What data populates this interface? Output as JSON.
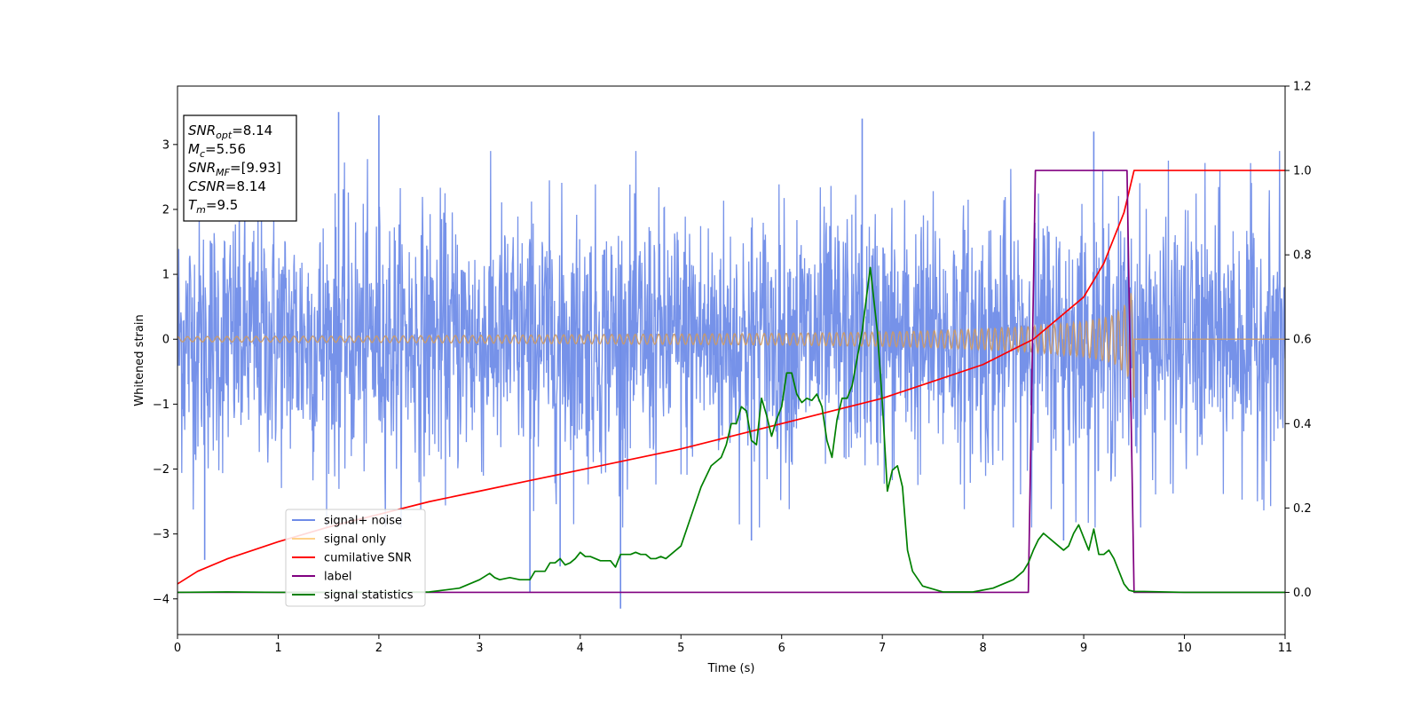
{
  "chart_data": {
    "type": "line",
    "xlabel": "Time (s)",
    "ylabel": "Whitened strain",
    "xlim": [
      0,
      11
    ],
    "ylim_left": [
      -4.55,
      3.9
    ],
    "ylim_right": [
      -0.1,
      1.2
    ],
    "x_ticks": [
      "0",
      "1",
      "2",
      "3",
      "4",
      "5",
      "6",
      "7",
      "8",
      "9",
      "10",
      "11"
    ],
    "y_ticks_left": [
      "−4",
      "−3",
      "−2",
      "−1",
      "0",
      "1",
      "2",
      "3"
    ],
    "y_ticks_right": [
      "0.0",
      "0.2",
      "0.4",
      "0.6",
      "0.8",
      "1.0",
      "1.2"
    ],
    "info_box": [
      {
        "main": "SNR",
        "sub": "opt",
        "value": "=8.14"
      },
      {
        "main": "M",
        "sub": "c",
        "value": "=5.56"
      },
      {
        "main": "SNR",
        "sub": "MF",
        "value": "=[9.93]"
      },
      {
        "main": "CSNR",
        "sub": "",
        "value": "=8.14"
      },
      {
        "main": "T",
        "sub": "m",
        "value": "=9.5"
      }
    ],
    "legend": [
      {
        "label": "signal+ noise",
        "color": "#6f8ce8"
      },
      {
        "label": "signal only",
        "color": "#ffd28a"
      },
      {
        "label": "cumilative SNR",
        "color": "#ff0000"
      },
      {
        "label": "label",
        "color": "#800080"
      },
      {
        "label": "signal statistics",
        "color": "#008000"
      }
    ],
    "series": [
      {
        "name": "signal+ noise",
        "axis": "left",
        "color": "#6f8ce8",
        "description_range": [
          -4.2,
          3.5
        ],
        "outliers": [
          [
            1.6,
            3.5
          ],
          [
            0.27,
            -3.4
          ],
          [
            4.4,
            -4.15
          ],
          [
            3.5,
            -3.9
          ],
          [
            6.8,
            3.4
          ],
          [
            2.0,
            3.45
          ],
          [
            9.1,
            3.2
          ],
          [
            3.8,
            -3.5
          ],
          [
            5.7,
            -3.1
          ],
          [
            8.8,
            -3.1
          ]
        ]
      },
      {
        "name": "signal only",
        "axis": "left",
        "color": "#ffd28a",
        "chirp_end": 9.5,
        "envelope": [
          [
            0,
            0.04
          ],
          [
            2,
            0.05
          ],
          [
            4,
            0.07
          ],
          [
            5,
            0.08
          ],
          [
            6,
            0.09
          ],
          [
            7,
            0.11
          ],
          [
            7.5,
            0.13
          ],
          [
            8,
            0.16
          ],
          [
            8.5,
            0.2
          ],
          [
            9,
            0.27
          ],
          [
            9.3,
            0.37
          ],
          [
            9.45,
            0.6
          ],
          [
            9.5,
            0.9
          ]
        ]
      },
      {
        "name": "cumilative SNR",
        "axis": "right",
        "color": "#ff0000",
        "x": [
          0,
          0.2,
          0.5,
          1,
          1.5,
          2,
          2.5,
          3,
          3.5,
          4,
          4.5,
          5,
          5.5,
          6,
          6.5,
          7,
          7.5,
          8,
          8.5,
          9,
          9.2,
          9.4,
          9.5,
          9.6,
          11
        ],
        "y": [
          0.02,
          0.05,
          0.08,
          0.12,
          0.155,
          0.185,
          0.215,
          0.24,
          0.265,
          0.29,
          0.315,
          0.34,
          0.37,
          0.4,
          0.43,
          0.46,
          0.5,
          0.54,
          0.6,
          0.7,
          0.78,
          0.9,
          1.0,
          1.0,
          1.0
        ]
      },
      {
        "name": "label",
        "axis": "right",
        "color": "#800080",
        "x": [
          0,
          8.45,
          8.52,
          9.43,
          9.5,
          11
        ],
        "y": [
          0.0,
          0.0,
          1.0,
          1.0,
          0.0,
          0.0
        ]
      },
      {
        "name": "signal statistics",
        "axis": "right",
        "color": "#008000",
        "x": [
          0,
          0.5,
          1,
          2,
          2.5,
          2.8,
          2.9,
          3.0,
          3.1,
          3.15,
          3.2,
          3.3,
          3.4,
          3.5,
          3.55,
          3.6,
          3.65,
          3.7,
          3.75,
          3.8,
          3.85,
          3.9,
          3.95,
          4.0,
          4.05,
          4.1,
          4.2,
          4.3,
          4.35,
          4.4,
          4.5,
          4.55,
          4.6,
          4.65,
          4.7,
          4.75,
          4.8,
          4.85,
          4.9,
          5.0,
          5.1,
          5.2,
          5.3,
          5.35,
          5.4,
          5.45,
          5.5,
          5.55,
          5.6,
          5.65,
          5.7,
          5.75,
          5.8,
          5.85,
          5.9,
          5.95,
          6.0,
          6.05,
          6.1,
          6.15,
          6.2,
          6.25,
          6.3,
          6.35,
          6.4,
          6.45,
          6.5,
          6.55,
          6.6,
          6.65,
          6.7,
          6.8,
          6.88,
          6.95,
          7.0,
          7.05,
          7.1,
          7.15,
          7.2,
          7.25,
          7.3,
          7.4,
          7.6,
          7.9,
          8.1,
          8.2,
          8.3,
          8.4,
          8.45,
          8.5,
          8.55,
          8.6,
          8.65,
          8.7,
          8.75,
          8.8,
          8.85,
          8.9,
          8.95,
          9.0,
          9.05,
          9.1,
          9.15,
          9.2,
          9.25,
          9.3,
          9.35,
          9.4,
          9.45,
          9.5,
          9.6,
          10,
          10.5,
          11
        ],
        "y": [
          0.0,
          0.001,
          0.0,
          0.0,
          0.001,
          0.01,
          0.02,
          0.03,
          0.045,
          0.035,
          0.03,
          0.035,
          0.03,
          0.03,
          0.05,
          0.05,
          0.05,
          0.07,
          0.07,
          0.08,
          0.065,
          0.07,
          0.08,
          0.095,
          0.085,
          0.085,
          0.075,
          0.075,
          0.06,
          0.09,
          0.09,
          0.095,
          0.09,
          0.09,
          0.08,
          0.08,
          0.085,
          0.08,
          0.09,
          0.11,
          0.18,
          0.25,
          0.3,
          0.31,
          0.32,
          0.35,
          0.4,
          0.4,
          0.44,
          0.43,
          0.36,
          0.35,
          0.46,
          0.42,
          0.37,
          0.41,
          0.44,
          0.52,
          0.52,
          0.47,
          0.45,
          0.46,
          0.455,
          0.47,
          0.44,
          0.36,
          0.32,
          0.41,
          0.46,
          0.46,
          0.49,
          0.62,
          0.77,
          0.62,
          0.45,
          0.24,
          0.29,
          0.3,
          0.25,
          0.1,
          0.05,
          0.015,
          0.001,
          0.001,
          0.01,
          0.02,
          0.03,
          0.05,
          0.07,
          0.1,
          0.125,
          0.14,
          0.13,
          0.12,
          0.11,
          0.1,
          0.11,
          0.14,
          0.16,
          0.13,
          0.1,
          0.15,
          0.09,
          0.09,
          0.1,
          0.08,
          0.05,
          0.02,
          0.005,
          0.002,
          0.002,
          0.0,
          0.0,
          0.0
        ]
      }
    ]
  }
}
